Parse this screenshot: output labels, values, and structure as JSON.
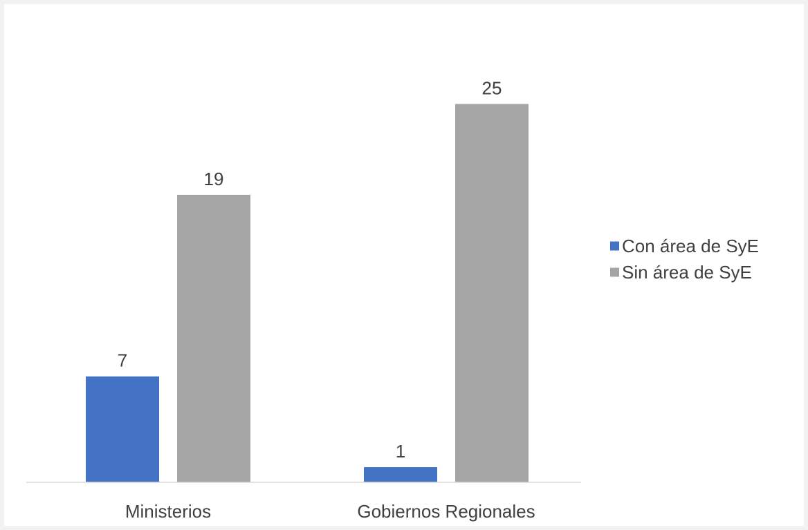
{
  "chart_data": {
    "type": "bar",
    "categories": [
      "Ministerios",
      "Gobiernos Regionales"
    ],
    "series": [
      {
        "name": "Con área de SyE",
        "values": [
          7,
          1
        ],
        "color": "#4472c4"
      },
      {
        "name": "Sin área de SyE",
        "values": [
          19,
          25
        ],
        "color": "#a5a5a5"
      }
    ],
    "ylim": [
      0,
      28
    ],
    "grid": false,
    "legend_position": "right",
    "data_labels": true
  }
}
